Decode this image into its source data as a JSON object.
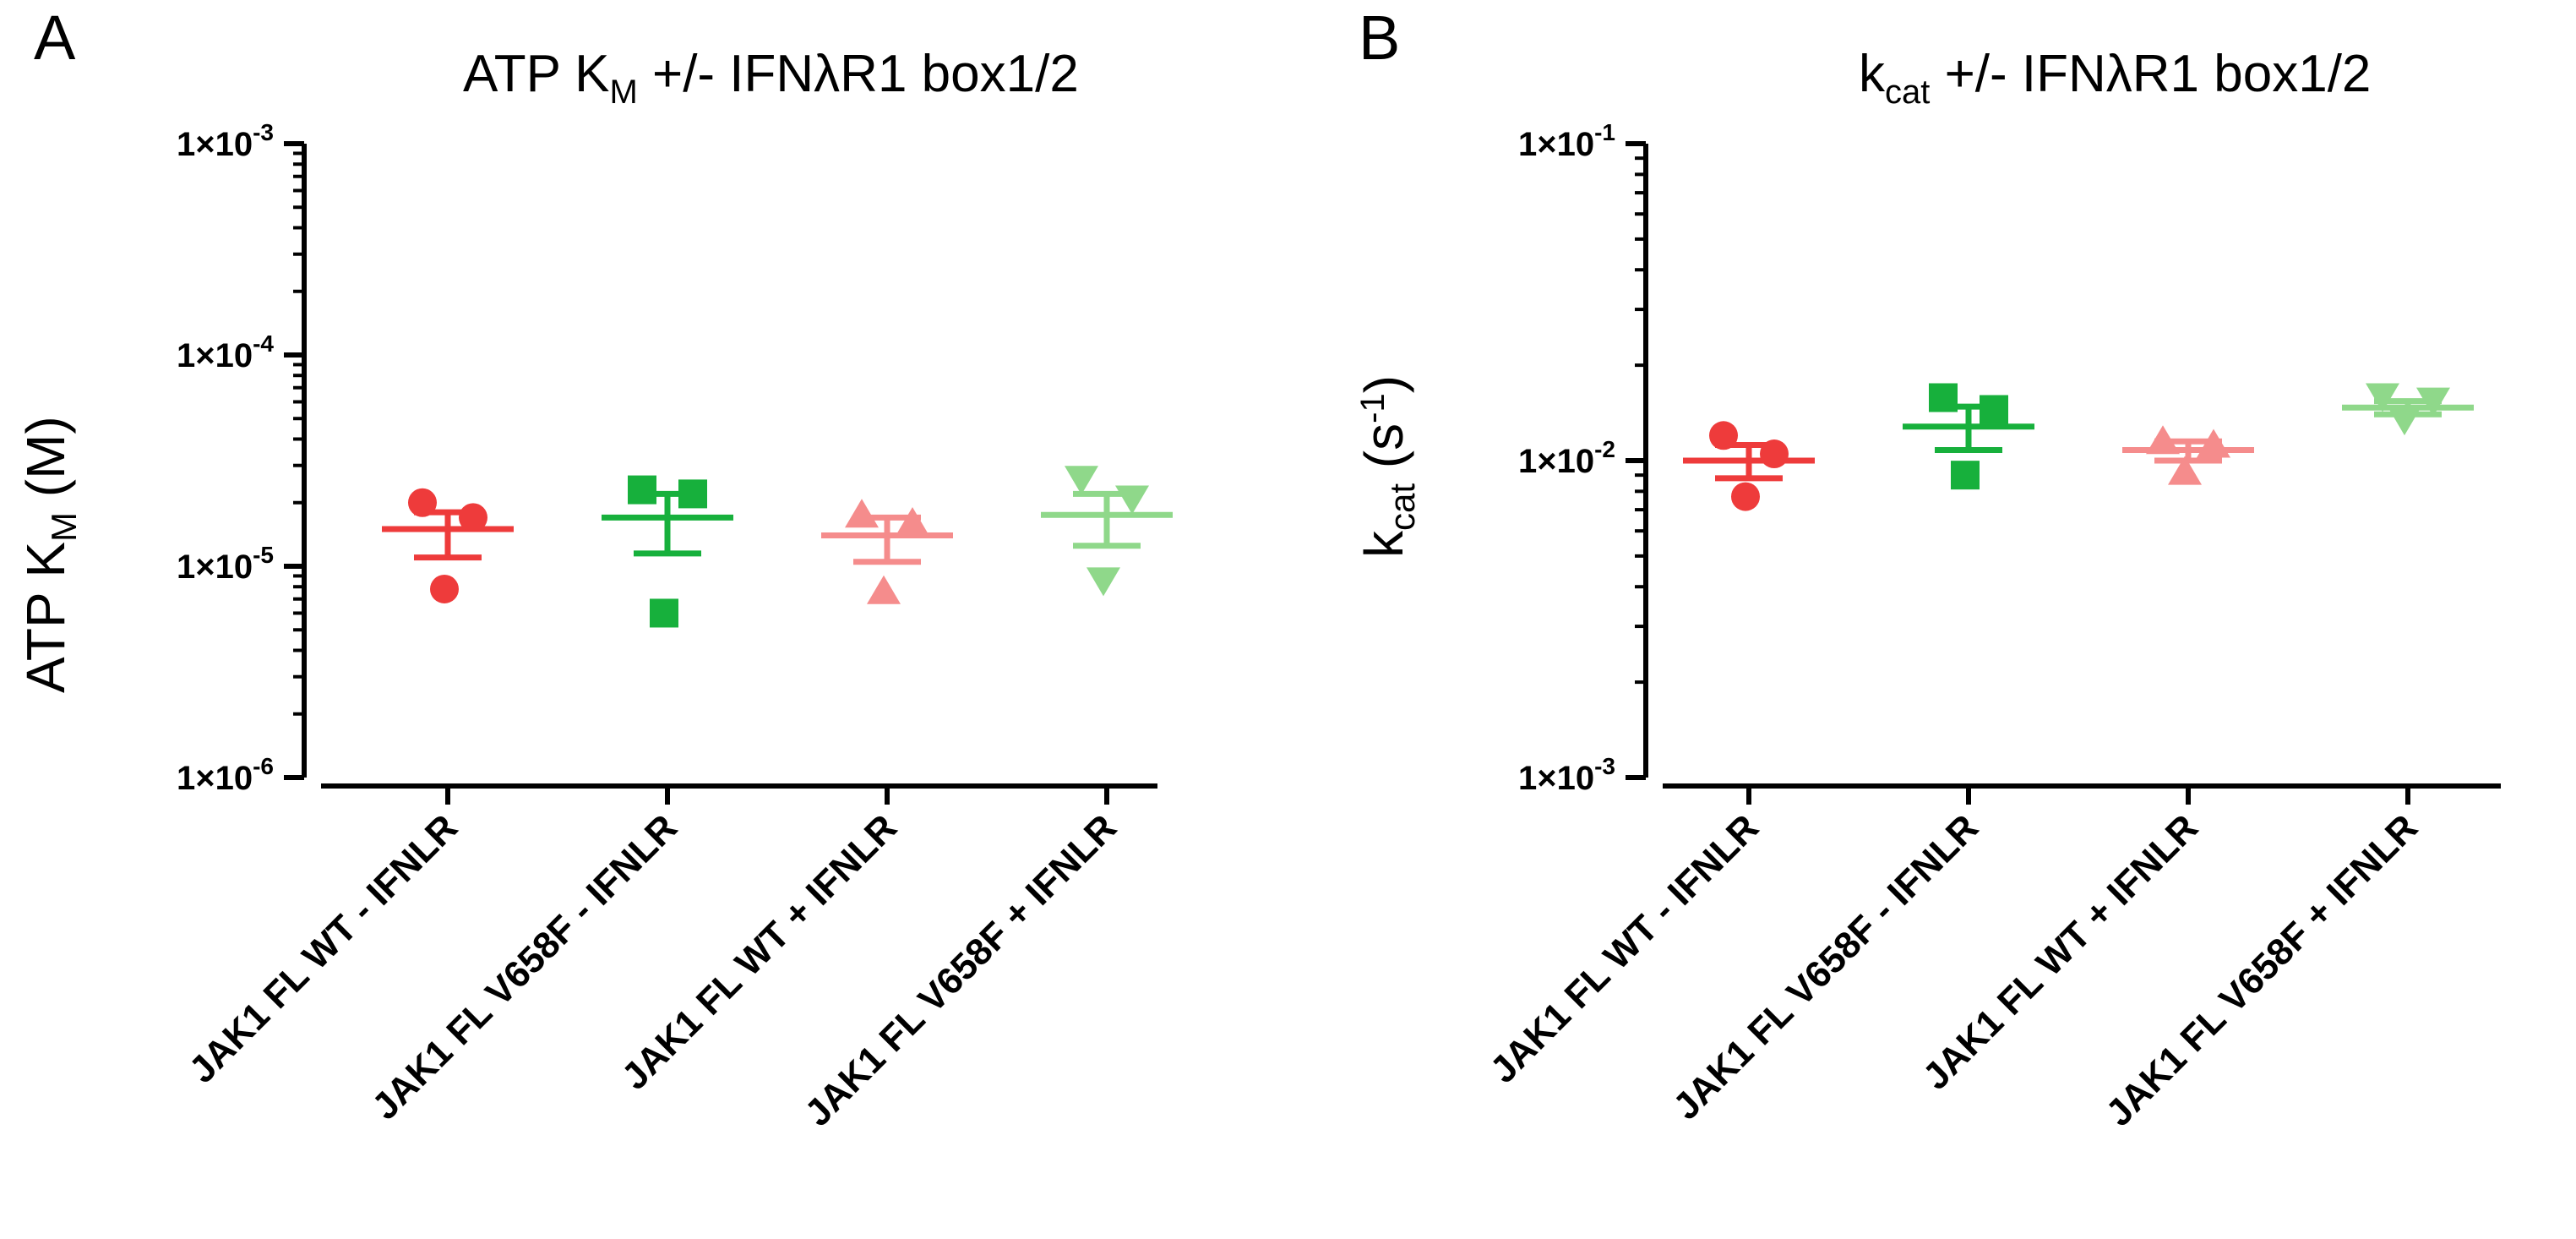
{
  "chart_data": [
    {
      "panel": "A",
      "type": "scatter",
      "title_main": "ATP K",
      "title_sub": "M",
      "title_rest": " +/- IFNλR1 box1/2",
      "ylabel_main": "ATP K",
      "ylabel_sub": "M",
      "ylabel_rest": " (M)",
      "yscale": "log",
      "ylim": [
        1e-06,
        0.001
      ],
      "yticks": [
        {
          "base": "1×10",
          "exp": "-3",
          "value": 0.001
        },
        {
          "base": "1×10",
          "exp": "-4",
          "value": 0.0001
        },
        {
          "base": "1×10",
          "exp": "-5",
          "value": 1e-05
        },
        {
          "base": "1×10",
          "exp": "-6",
          "value": 1e-06
        }
      ],
      "categories": [
        "JAK1 FL WT - IFNLR",
        "JAK1 FL V658F - IFNLR",
        "JAK1 FL WT + IFNLR",
        "JAK1 FL V658F + IFNLR"
      ],
      "groups": [
        {
          "name": "JAK1 FL WT - IFNLR",
          "color": "#ee3b3b",
          "marker": "circle",
          "points": [
            2e-05,
            1.7e-05,
            7.8e-06
          ],
          "mean": 1.5e-05,
          "sem_low": 1.1e-05,
          "sem_high": 1.8e-05
        },
        {
          "name": "JAK1 FL V658F - IFNLR",
          "color": "#17b03c",
          "marker": "square",
          "points": [
            2.3e-05,
            2.2e-05,
            6e-06
          ],
          "mean": 1.7e-05,
          "sem_low": 1.15e-05,
          "sem_high": 2.2e-05
        },
        {
          "name": "JAK1 FL WT + IFNLR",
          "color": "#f58c8c",
          "marker": "triangle-up",
          "points": [
            1.75e-05,
            1.6e-05,
            7.6e-06
          ],
          "mean": 1.4e-05,
          "sem_low": 1.05e-05,
          "sem_high": 1.7e-05
        },
        {
          "name": "JAK1 FL V658F + IFNLR",
          "color": "#8fd88a",
          "marker": "triangle-down",
          "points": [
            2.6e-05,
            2.1e-05,
            8.6e-06
          ],
          "mean": 1.75e-05,
          "sem_low": 1.25e-05,
          "sem_high": 2.2e-05
        }
      ]
    },
    {
      "panel": "B",
      "type": "scatter",
      "title_main": "k",
      "title_sub": "cat",
      "title_rest": " +/- IFNλR1 box1/2",
      "ylabel_main": "k",
      "ylabel_sub": "cat",
      "ylabel_rest": " (s",
      "ylabel_sup": "-1",
      "ylabel_end": ")",
      "yscale": "log",
      "ylim": [
        0.001,
        0.1
      ],
      "yticks": [
        {
          "base": "1×10",
          "exp": "-1",
          "value": 0.1
        },
        {
          "base": "1×10",
          "exp": "-2",
          "value": 0.01
        },
        {
          "base": "1×10",
          "exp": "-3",
          "value": 0.001
        }
      ],
      "categories": [
        "JAK1 FL WT - IFNLR",
        "JAK1 FL V658F - IFNLR",
        "JAK1 FL WT + IFNLR",
        "JAK1 FL V658F + IFNLR"
      ],
      "groups": [
        {
          "name": "JAK1 FL WT - IFNLR",
          "color": "#ee3b3b",
          "marker": "circle",
          "points": [
            0.012,
            0.0105,
            0.0077
          ],
          "mean": 0.01,
          "sem_low": 0.0088,
          "sem_high": 0.0112
        },
        {
          "name": "JAK1 FL V658F - IFNLR",
          "color": "#17b03c",
          "marker": "square",
          "points": [
            0.0158,
            0.0145,
            0.009
          ],
          "mean": 0.0128,
          "sem_low": 0.0108,
          "sem_high": 0.0148
        },
        {
          "name": "JAK1 FL WT + IFNLR",
          "color": "#f58c8c",
          "marker": "triangle-up",
          "points": [
            0.0115,
            0.0112,
            0.0092
          ],
          "mean": 0.0108,
          "sem_low": 0.01,
          "sem_high": 0.0115
        },
        {
          "name": "JAK1 FL V658F + IFNLR",
          "color": "#8fd88a",
          "marker": "triangle-down",
          "points": [
            0.016,
            0.0155,
            0.0135
          ],
          "mean": 0.0147,
          "sem_low": 0.014,
          "sem_high": 0.0154
        }
      ]
    }
  ]
}
